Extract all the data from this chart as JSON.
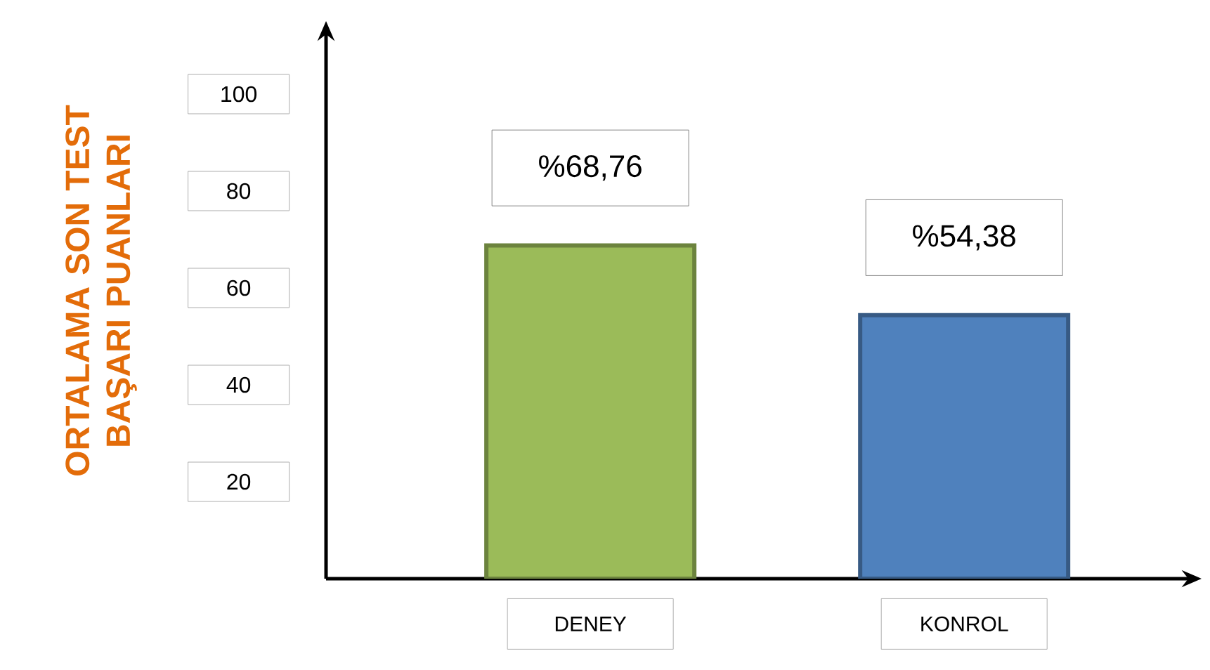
{
  "chart_data": {
    "type": "bar",
    "ylabel": "ORTALAMA SON TEST BAŞARI PUANLARI",
    "categories": [
      "DENEY",
      "KONROL"
    ],
    "values": [
      68.76,
      54.38
    ],
    "colors": [
      "#9bbb59",
      "#4f81bd"
    ],
    "value_labels": [
      "%68,76",
      "%54,38"
    ],
    "ylim": [
      0,
      100
    ],
    "yticks": [
      20,
      40,
      60,
      80,
      100
    ]
  }
}
